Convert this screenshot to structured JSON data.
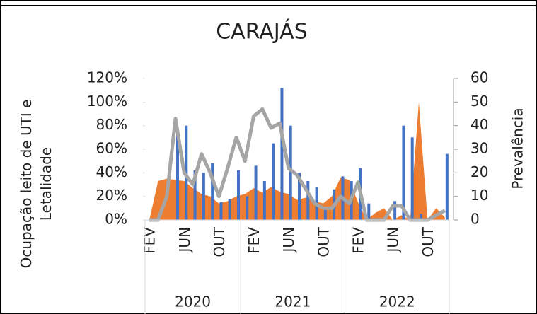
{
  "chart_data": {
    "type": "combo",
    "title": "CARAJÁS",
    "y_label": "Ocupação leito de UTI e Letalidade",
    "y2_label": "Prevalência",
    "groups": [
      {
        "label": "2020",
        "categories": [
          "FEV",
          null,
          null,
          null,
          "JUN",
          null,
          null,
          null,
          "OUT",
          null,
          null
        ]
      },
      {
        "label": "2021",
        "categories": [
          null,
          "FEV",
          null,
          null,
          null,
          "JUN",
          null,
          null,
          null,
          "OUT",
          null,
          null
        ]
      },
      {
        "label": "2022",
        "categories": [
          null,
          "FEV",
          null,
          null,
          null,
          "JUN",
          null,
          null,
          null,
          "OUT",
          null,
          null
        ]
      }
    ],
    "series": [
      {
        "type": "area",
        "color": "#ed7d31",
        "values": [
          0,
          33,
          35,
          34,
          33,
          27,
          22,
          20,
          14,
          16,
          20,
          22,
          27,
          23,
          28,
          24,
          22,
          17,
          19,
          16,
          14,
          20,
          36,
          34,
          15,
          0,
          6,
          10,
          0,
          4,
          0,
          100,
          0,
          10,
          2
        ]
      },
      {
        "type": "bar",
        "color": "#4472c4",
        "values": [
          0,
          0,
          0,
          72,
          80,
          42,
          40,
          48,
          15,
          18,
          42,
          20,
          46,
          33,
          65,
          112,
          80,
          40,
          33,
          28,
          10,
          26,
          37,
          33,
          44,
          14,
          0,
          0,
          16,
          80,
          70,
          5,
          0,
          0,
          56
        ]
      },
      {
        "type": "line",
        "axis": "y2",
        "color": "#a5a5a5",
        "values": [
          0,
          0,
          10,
          43,
          20,
          15,
          28,
          20,
          10,
          22,
          35,
          25,
          44,
          47,
          39,
          41,
          22,
          19,
          13,
          7,
          5,
          5,
          10,
          7,
          16,
          0,
          0,
          0,
          6,
          6,
          0,
          0,
          0,
          2,
          4
        ]
      }
    ],
    "ylim": [
      0,
      120
    ],
    "yticks": [
      {
        "value": 0,
        "label": "0%"
      },
      {
        "value": 20,
        "label": "20%"
      },
      {
        "value": 40,
        "label": "40%"
      },
      {
        "value": 60,
        "label": "60%"
      },
      {
        "value": 80,
        "label": "80%"
      },
      {
        "value": 100,
        "label": "100%"
      },
      {
        "value": 120,
        "label": "120%"
      }
    ],
    "y2lim": [
      0,
      60
    ],
    "y2ticks": [
      0,
      10,
      20,
      30,
      40,
      50,
      60
    ]
  }
}
